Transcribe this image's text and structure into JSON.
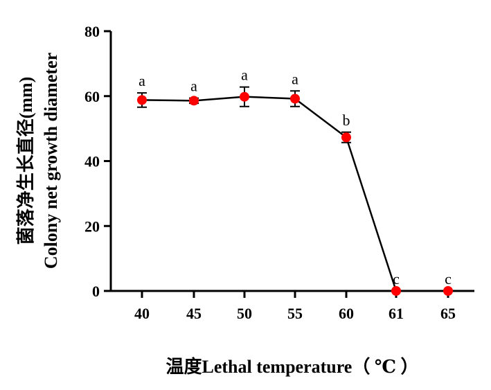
{
  "chart_data": {
    "type": "line",
    "x_axis_mode": "categorical",
    "categories": [
      "40",
      "45",
      "50",
      "55",
      "60",
      "61",
      "65"
    ],
    "series": [
      {
        "values": [
          58.8,
          58.6,
          59.8,
          59.2,
          47.3,
          0,
          0
        ],
        "errors": [
          2.2,
          0.8,
          3.0,
          2.4,
          1.6,
          0,
          0
        ],
        "point_labels": [
          "a",
          "a",
          "a",
          "a",
          "b",
          "c",
          "c"
        ]
      }
    ],
    "ylim": [
      0,
      80
    ],
    "yticks": [
      "0",
      "20",
      "40",
      "60",
      "80"
    ],
    "xlabel": "温度Lethal temperature（ ℃ ）",
    "ylabel_line1": "菌落净生长直径(mm)",
    "ylabel_line2": "Colony net growth diameter",
    "grid": false,
    "legend": "none",
    "marker_color": "#ff0000",
    "line_color": "#000000"
  }
}
